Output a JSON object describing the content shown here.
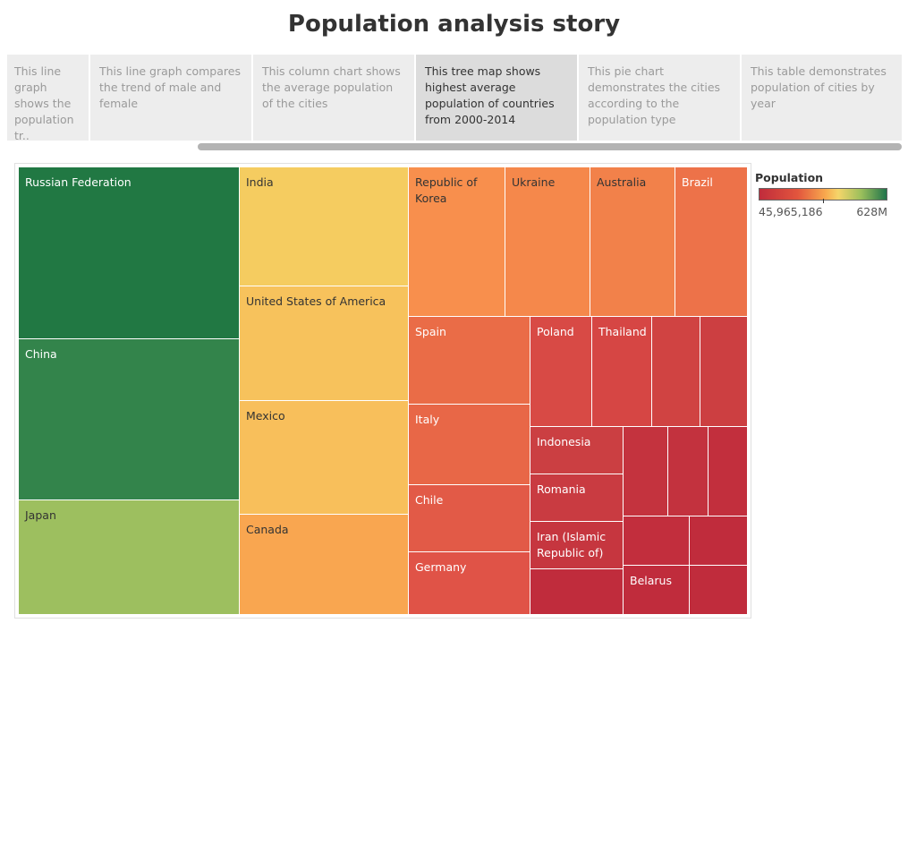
{
  "title": "Population analysis story",
  "story_points": [
    {
      "label": "This line graph shows the population tr..",
      "active": false
    },
    {
      "label": "This line graph compares the trend of male and female",
      "active": false
    },
    {
      "label": "This column chart shows the average population of the cities",
      "active": false
    },
    {
      "label": "This tree map shows highest average population of countries from 2000-2014",
      "active": true
    },
    {
      "label": "This pie chart demonstrates the cities according to the population type",
      "active": false
    },
    {
      "label": "This table demonstrates population of cities by year",
      "active": false
    }
  ],
  "legend": {
    "title": "Population",
    "min_label": "45,965,186",
    "max_label": "628M"
  },
  "chart_data": {
    "type": "treemap",
    "measure": "Population",
    "color_scale": [
      "#c02c3c",
      "#e2553d",
      "#f8a94e",
      "#f5d56a",
      "#9bbf5c",
      "#20744b"
    ],
    "nodes": [
      {
        "label": "Russian Federation",
        "color": "#217843",
        "text_color": "#ffffff"
      },
      {
        "label": "China",
        "color": "#33844b",
        "text_color": "#ffffff"
      },
      {
        "label": "Japan",
        "color": "#9dbf5f",
        "text_color": "#333333"
      },
      {
        "label": "India",
        "color": "#f5cc60",
        "text_color": "#333333"
      },
      {
        "label": "United States of America",
        "color": "#f7c25c",
        "text_color": "#333333"
      },
      {
        "label": "Mexico",
        "color": "#f8bf5b",
        "text_color": "#333333"
      },
      {
        "label": "Canada",
        "color": "#f9a650",
        "text_color": "#333333"
      },
      {
        "label": "Republic of Korea",
        "color": "#f88f4d",
        "text_color": "#333333"
      },
      {
        "label": "Ukraine",
        "color": "#f5884b",
        "text_color": "#333333"
      },
      {
        "label": "Australia",
        "color": "#f2814a",
        "text_color": "#333333"
      },
      {
        "label": "Brazil",
        "color": "#ed7249",
        "text_color": "#ffffff"
      },
      {
        "label": "Spain",
        "color": "#ea6c47",
        "text_color": "#ffffff"
      },
      {
        "label": "Italy",
        "color": "#e86747",
        "text_color": "#ffffff"
      },
      {
        "label": "Chile",
        "color": "#e25a47",
        "text_color": "#ffffff"
      },
      {
        "label": "Germany",
        "color": "#e05347",
        "text_color": "#ffffff"
      },
      {
        "label": "Poland",
        "color": "#d84a45",
        "text_color": "#ffffff"
      },
      {
        "label": "Thailand",
        "color": "#d64644",
        "text_color": "#ffffff"
      },
      {
        "label": "",
        "color": "#d04342",
        "text_color": "#ffffff"
      },
      {
        "label": "",
        "color": "#cc3f41",
        "text_color": "#ffffff"
      },
      {
        "label": "Indonesia",
        "color": "#cb3f42",
        "text_color": "#ffffff"
      },
      {
        "label": "Romania",
        "color": "#c93b41",
        "text_color": "#ffffff"
      },
      {
        "label": "Iran (Islamic Republic of)",
        "color": "#c6363f",
        "text_color": "#ffffff"
      },
      {
        "label": "",
        "color": "#c4333e",
        "text_color": "#ffffff"
      },
      {
        "label": "",
        "color": "#c3323e",
        "text_color": "#ffffff"
      },
      {
        "label": "",
        "color": "#c22f3d",
        "text_color": "#ffffff"
      },
      {
        "label": "",
        "color": "#c22e3d",
        "text_color": "#ffffff"
      },
      {
        "label": "",
        "color": "#c02c3c",
        "text_color": "#ffffff"
      },
      {
        "label": "",
        "color": "#c02c3c",
        "text_color": "#ffffff"
      },
      {
        "label": "Belarus",
        "color": "#c02c3c",
        "text_color": "#ffffff"
      },
      {
        "label": "",
        "color": "#c02c3c",
        "text_color": "#ffffff"
      }
    ]
  }
}
